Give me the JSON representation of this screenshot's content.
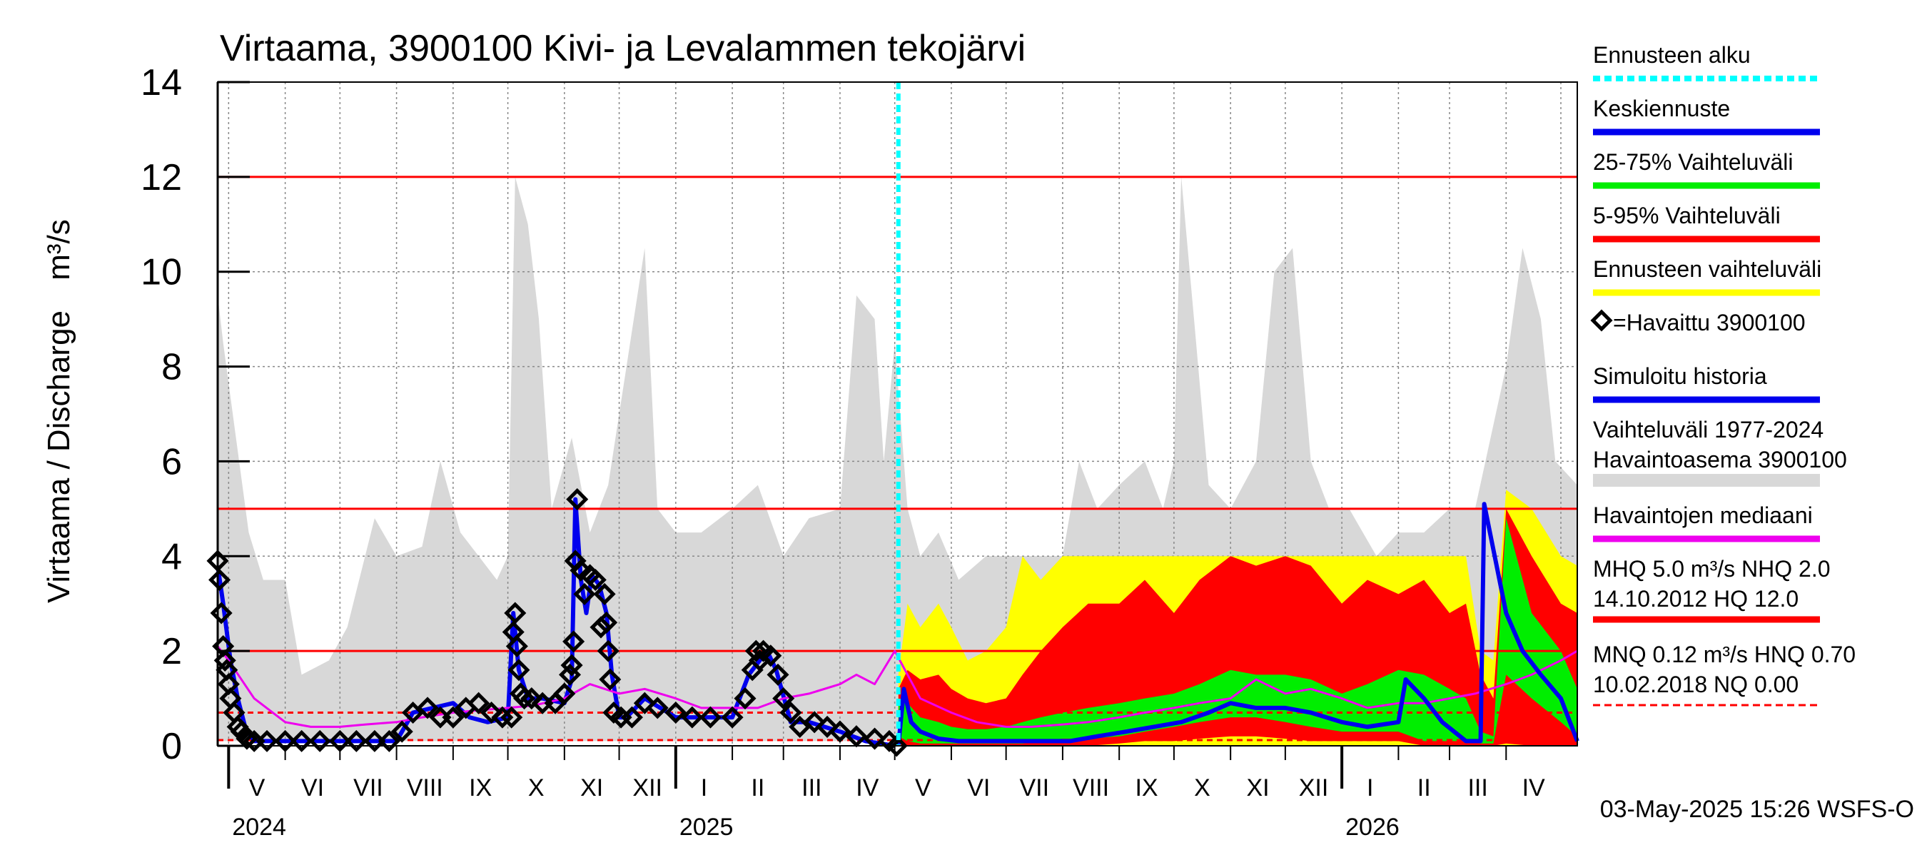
{
  "chart_data": {
    "type": "line",
    "title": "Virtaama, 3900100 Kivi- ja Levalammen tekojärvi",
    "ylabel": "Virtaama / Discharge",
    "yunit": "m³/s",
    "ylim": [
      0,
      14
    ],
    "yticks": [
      0,
      2,
      4,
      6,
      8,
      10,
      12,
      14
    ],
    "x_start": "2024-04-25",
    "x_end": "2026-05-10",
    "months": [
      {
        "label": "V",
        "date": "2024-05-01"
      },
      {
        "label": "VI",
        "date": "2024-06-01"
      },
      {
        "label": "VII",
        "date": "2024-07-01"
      },
      {
        "label": "VIII",
        "date": "2024-08-01"
      },
      {
        "label": "IX",
        "date": "2024-09-01"
      },
      {
        "label": "X",
        "date": "2024-10-01"
      },
      {
        "label": "XI",
        "date": "2024-11-01"
      },
      {
        "label": "XII",
        "date": "2024-12-01"
      },
      {
        "label": "I",
        "date": "2025-01-01"
      },
      {
        "label": "II",
        "date": "2025-02-01"
      },
      {
        "label": "III",
        "date": "2025-03-01"
      },
      {
        "label": "IV",
        "date": "2025-04-01"
      },
      {
        "label": "V",
        "date": "2025-05-01"
      },
      {
        "label": "VI",
        "date": "2025-06-01"
      },
      {
        "label": "VII",
        "date": "2025-07-01"
      },
      {
        "label": "VIII",
        "date": "2025-08-01"
      },
      {
        "label": "IX",
        "date": "2025-09-01"
      },
      {
        "label": "X",
        "date": "2025-10-01"
      },
      {
        "label": "XI",
        "date": "2025-11-01"
      },
      {
        "label": "XII",
        "date": "2025-12-01"
      },
      {
        "label": "I",
        "date": "2026-01-01"
      },
      {
        "label": "II",
        "date": "2026-02-01"
      },
      {
        "label": "III",
        "date": "2026-03-01"
      },
      {
        "label": "IV",
        "date": "2026-04-01"
      },
      {
        "label": "",
        "date": "2026-05-01"
      }
    ],
    "years": [
      {
        "label": "2024",
        "date": "2024-05-01"
      },
      {
        "label": "2025",
        "date": "2025-01-01"
      },
      {
        "label": "2026",
        "date": "2026-01-01"
      }
    ],
    "forecast_start": "2025-05-03",
    "reference_lines": [
      {
        "name": "HQ",
        "y": 12.0,
        "color": "#ff0000",
        "style": "solid"
      },
      {
        "name": "MHQ",
        "y": 5.0,
        "color": "#ff0000",
        "style": "solid"
      },
      {
        "name": "NHQ",
        "y": 2.0,
        "color": "#ff0000",
        "style": "solid"
      },
      {
        "name": "HNQ",
        "y": 0.7,
        "color": "#ff0000",
        "style": "dashed"
      },
      {
        "name": "MNQ",
        "y": 0.12,
        "color": "#ff0000",
        "style": "dashed"
      }
    ],
    "history_range": {
      "color": "#d8d8d8",
      "x": [
        "2024-04-25",
        "2024-04-28",
        "2024-05-05",
        "2024-05-12",
        "2024-05-20",
        "2024-06-01",
        "2024-06-10",
        "2024-06-25",
        "2024-07-05",
        "2024-07-20",
        "2024-08-01",
        "2024-08-15",
        "2024-08-25",
        "2024-09-05",
        "2024-09-15",
        "2024-09-25",
        "2024-10-01",
        "2024-10-05",
        "2024-10-12",
        "2024-10-18",
        "2024-10-25",
        "2024-11-05",
        "2024-11-15",
        "2024-11-25",
        "2024-12-05",
        "2024-12-15",
        "2024-12-22",
        "2025-01-01",
        "2025-01-15",
        "2025-02-01",
        "2025-02-15",
        "2025-03-01",
        "2025-03-15",
        "2025-04-01",
        "2025-04-10",
        "2025-04-20",
        "2025-04-25",
        "2025-05-01",
        "2025-05-08",
        "2025-05-15",
        "2025-05-25",
        "2025-06-05",
        "2025-06-20",
        "2025-07-01",
        "2025-07-15",
        "2025-08-01",
        "2025-08-10",
        "2025-08-20",
        "2025-09-01",
        "2025-09-15",
        "2025-09-25",
        "2025-10-01",
        "2025-10-05",
        "2025-10-12",
        "2025-10-20",
        "2025-11-01",
        "2025-11-15",
        "2025-11-25",
        "2025-12-05",
        "2025-12-15",
        "2025-12-25",
        "2026-01-05",
        "2026-01-20",
        "2026-02-01",
        "2026-02-15",
        "2026-03-01",
        "2026-03-15",
        "2026-04-01",
        "2026-04-10",
        "2026-04-20",
        "2026-04-28",
        "2026-05-10"
      ],
      "y": [
        9.5,
        8.5,
        6.5,
        4.5,
        3.5,
        3.5,
        1.5,
        1.8,
        2.5,
        4.8,
        4.0,
        4.2,
        6.0,
        4.5,
        4.0,
        3.5,
        4.0,
        12.0,
        11.0,
        9.0,
        5.0,
        6.5,
        4.5,
        5.5,
        8.0,
        10.5,
        5.0,
        4.5,
        4.5,
        5.0,
        5.5,
        4.0,
        4.8,
        5.0,
        9.5,
        9.0,
        6.0,
        8.5,
        5.0,
        4.0,
        4.5,
        3.5,
        4.0,
        4.0,
        4.0,
        4.0,
        6.0,
        5.0,
        5.5,
        6.0,
        5.0,
        6.0,
        12.0,
        9.0,
        5.5,
        5.0,
        6.0,
        10.0,
        10.5,
        6.0,
        5.0,
        5.0,
        4.0,
        4.5,
        4.5,
        5.0,
        5.0,
        8.0,
        10.5,
        9.0,
        6.0,
        5.5
      ]
    },
    "history_range_low": 0.1,
    "forecast_yellow": {
      "color": "#ffff00",
      "x": [
        "2025-05-03",
        "2025-05-08",
        "2025-05-15",
        "2025-05-25",
        "2025-06-01",
        "2025-06-10",
        "2025-06-20",
        "2025-07-01",
        "2025-07-10",
        "2025-07-20",
        "2025-08-01",
        "2025-08-15",
        "2025-09-01",
        "2025-09-15",
        "2025-10-01",
        "2025-10-15",
        "2025-11-01",
        "2025-11-15",
        "2025-12-01",
        "2025-12-15",
        "2026-01-01",
        "2026-01-15",
        "2026-02-01",
        "2026-02-15",
        "2026-03-01",
        "2026-03-10",
        "2026-03-18",
        "2026-03-25",
        "2026-04-01",
        "2026-04-15",
        "2026-05-01",
        "2026-05-10"
      ],
      "y": [
        1.5,
        3.0,
        2.5,
        3.0,
        2.5,
        1.8,
        2.0,
        2.5,
        4.0,
        3.5,
        4.0,
        4.0,
        4.0,
        4.0,
        4.0,
        4.0,
        4.0,
        4.0,
        4.0,
        4.0,
        4.0,
        4.0,
        4.0,
        4.0,
        4.0,
        4.0,
        2.0,
        1.8,
        5.4,
        5.0,
        4.0,
        3.8
      ],
      "low": 0.0
    },
    "forecast_p5_95": {
      "color": "#ff0000",
      "x": [
        "2025-05-03",
        "2025-05-08",
        "2025-05-15",
        "2025-05-25",
        "2025-06-01",
        "2025-06-10",
        "2025-06-20",
        "2025-07-01",
        "2025-07-10",
        "2025-07-20",
        "2025-08-01",
        "2025-08-15",
        "2025-09-01",
        "2025-09-15",
        "2025-10-01",
        "2025-10-15",
        "2025-11-01",
        "2025-11-15",
        "2025-12-01",
        "2025-12-15",
        "2026-01-01",
        "2026-01-15",
        "2026-02-01",
        "2026-02-15",
        "2026-03-01",
        "2026-03-10",
        "2026-03-18",
        "2026-03-25",
        "2026-04-01",
        "2026-04-15",
        "2026-05-01",
        "2026-05-10"
      ],
      "y": [
        1.2,
        1.6,
        1.4,
        1.5,
        1.2,
        1.0,
        0.9,
        1.0,
        1.5,
        2.0,
        2.5,
        3.0,
        3.0,
        3.5,
        2.8,
        3.5,
        4.0,
        3.8,
        4.0,
        3.8,
        3.0,
        3.5,
        3.2,
        3.5,
        2.8,
        3.0,
        1.5,
        1.0,
        5.0,
        4.0,
        3.0,
        2.8
      ],
      "low": [
        0.0,
        0.0,
        0.0,
        0.0,
        0.0,
        0.0,
        0.0,
        0.0,
        0.0,
        0.0,
        0.0,
        0.0,
        0.05,
        0.1,
        0.1,
        0.15,
        0.2,
        0.2,
        0.15,
        0.1,
        0.1,
        0.1,
        0.1,
        0.0,
        0.0,
        0.0,
        0.0,
        0.0,
        0.05,
        0.0,
        0.0,
        0.0
      ]
    },
    "forecast_p25_75": {
      "color": "#00ee00",
      "x": [
        "2025-05-03",
        "2025-05-08",
        "2025-05-15",
        "2025-05-25",
        "2025-06-01",
        "2025-06-10",
        "2025-06-20",
        "2025-07-01",
        "2025-07-10",
        "2025-07-20",
        "2025-08-01",
        "2025-08-15",
        "2025-09-01",
        "2025-09-15",
        "2025-10-01",
        "2025-10-15",
        "2025-11-01",
        "2025-11-15",
        "2025-12-01",
        "2025-12-15",
        "2026-01-01",
        "2026-01-15",
        "2026-02-01",
        "2026-02-15",
        "2026-03-01",
        "2026-03-10",
        "2026-03-18",
        "2026-03-25",
        "2026-04-01",
        "2026-04-15",
        "2026-05-01",
        "2026-05-10"
      ],
      "y": [
        1.0,
        0.9,
        0.6,
        0.5,
        0.4,
        0.35,
        0.35,
        0.4,
        0.5,
        0.6,
        0.7,
        0.8,
        0.9,
        1.0,
        1.1,
        1.3,
        1.6,
        1.5,
        1.5,
        1.4,
        1.1,
        1.3,
        1.6,
        1.5,
        1.2,
        1.0,
        0.3,
        0.2,
        4.8,
        2.8,
        2.0,
        1.2
      ],
      "low": [
        0.2,
        0.1,
        0.05,
        0.05,
        0.05,
        0.05,
        0.05,
        0.05,
        0.05,
        0.1,
        0.15,
        0.15,
        0.2,
        0.3,
        0.4,
        0.5,
        0.6,
        0.6,
        0.5,
        0.4,
        0.3,
        0.3,
        0.3,
        0.1,
        0.1,
        0.1,
        0.05,
        0.05,
        1.5,
        1.0,
        0.5,
        0.2
      ]
    },
    "series": [
      {
        "name": "Keskiennuste",
        "color": "#0000ee",
        "width": 6,
        "x": [
          "2025-05-03",
          "2025-05-06",
          "2025-05-10",
          "2025-05-15",
          "2025-05-25",
          "2025-06-05",
          "2025-06-20",
          "2025-07-05",
          "2025-07-20",
          "2025-08-05",
          "2025-08-20",
          "2025-09-05",
          "2025-09-20",
          "2025-10-05",
          "2025-10-20",
          "2025-11-01",
          "2025-11-15",
          "2025-12-01",
          "2025-12-15",
          "2026-01-01",
          "2026-01-15",
          "2026-02-01",
          "2026-02-05",
          "2026-02-15",
          "2026-02-25",
          "2026-03-10",
          "2026-03-18",
          "2026-03-20",
          "2026-04-01",
          "2026-04-10",
          "2026-04-20",
          "2026-05-01",
          "2026-05-10"
        ],
        "y": [
          0.0,
          1.2,
          0.5,
          0.3,
          0.15,
          0.1,
          0.1,
          0.1,
          0.1,
          0.1,
          0.2,
          0.3,
          0.4,
          0.5,
          0.7,
          0.9,
          0.8,
          0.8,
          0.7,
          0.5,
          0.4,
          0.5,
          1.4,
          1.0,
          0.5,
          0.1,
          0.1,
          5.1,
          2.8,
          2.0,
          1.5,
          1.0,
          0.1
        ]
      },
      {
        "name": "Havaintojen mediaani",
        "color": "#ee00ee",
        "width": 3,
        "x": [
          "2024-04-25",
          "2024-05-01",
          "2024-05-15",
          "2024-06-01",
          "2024-06-15",
          "2024-07-01",
          "2024-07-15",
          "2024-08-01",
          "2024-08-15",
          "2024-09-01",
          "2024-09-15",
          "2024-10-01",
          "2024-10-15",
          "2024-11-01",
          "2024-11-15",
          "2024-12-01",
          "2024-12-15",
          "2025-01-01",
          "2025-01-15",
          "2025-02-01",
          "2025-02-15",
          "2025-03-01",
          "2025-03-15",
          "2025-04-01",
          "2025-04-10",
          "2025-04-20",
          "2025-05-01",
          "2025-05-15",
          "2025-06-01",
          "2025-06-15",
          "2025-07-01",
          "2025-07-15",
          "2025-08-01",
          "2025-08-15",
          "2025-09-01",
          "2025-09-15",
          "2025-10-01",
          "2025-10-15",
          "2025-11-01",
          "2025-11-15",
          "2025-12-01",
          "2025-12-15",
          "2026-01-01",
          "2026-01-15",
          "2026-02-01",
          "2026-02-15",
          "2026-03-01",
          "2026-03-15",
          "2026-04-01",
          "2026-04-15",
          "2026-05-01",
          "2026-05-10"
        ],
        "y": [
          2.1,
          1.8,
          1.0,
          0.5,
          0.4,
          0.4,
          0.45,
          0.5,
          0.6,
          0.7,
          0.75,
          0.8,
          0.85,
          1.0,
          1.3,
          1.1,
          1.2,
          1.0,
          0.8,
          0.8,
          0.8,
          1.0,
          1.1,
          1.3,
          1.5,
          1.3,
          2.0,
          1.0,
          0.7,
          0.5,
          0.4,
          0.4,
          0.45,
          0.5,
          0.6,
          0.7,
          0.8,
          0.9,
          1.0,
          1.4,
          1.1,
          1.2,
          1.0,
          0.8,
          0.9,
          0.9,
          1.0,
          1.1,
          1.3,
          1.5,
          1.8,
          2.0
        ]
      }
    ],
    "simulated_history": {
      "name": "Simuloitu historia",
      "color": "#0000ee",
      "width": 6,
      "x": [
        "2024-04-25",
        "2024-04-28",
        "2024-05-02",
        "2024-05-06",
        "2024-05-10",
        "2024-05-15",
        "2024-08-01",
        "2024-08-10",
        "2024-09-01",
        "2024-09-10",
        "2024-09-20",
        "2024-10-01",
        "2024-10-04",
        "2024-10-07",
        "2024-10-12",
        "2024-10-20",
        "2024-11-01",
        "2024-11-05",
        "2024-11-07",
        "2024-11-10",
        "2024-11-13",
        "2024-11-16",
        "2024-11-20",
        "2024-11-24",
        "2024-11-27",
        "2024-12-01",
        "2024-12-05",
        "2024-12-15",
        "2025-01-01",
        "2025-02-01",
        "2025-02-10",
        "2025-02-20",
        "2025-02-25",
        "2025-03-05",
        "2025-03-15",
        "2025-04-01",
        "2025-04-15",
        "2025-05-01"
      ],
      "y": [
        3.8,
        3.0,
        1.8,
        1.0,
        0.4,
        0.1,
        0.1,
        0.7,
        0.9,
        0.6,
        0.5,
        0.6,
        2.8,
        1.6,
        1.0,
        1.0,
        0.9,
        1.4,
        5.2,
        3.5,
        2.8,
        3.6,
        3.4,
        2.8,
        1.5,
        0.6,
        0.6,
        1.0,
        0.6,
        0.6,
        1.5,
        2.0,
        1.6,
        0.5,
        0.5,
        0.3,
        0.1,
        0.0
      ]
    },
    "observed": {
      "name": "=Havaittu 3900100",
      "x": [
        "2024-04-25",
        "2024-04-26",
        "2024-04-27",
        "2024-04-28",
        "2024-04-29",
        "2024-04-30",
        "2024-05-01",
        "2024-05-02",
        "2024-05-04",
        "2024-05-06",
        "2024-05-08",
        "2024-05-11",
        "2024-05-15",
        "2024-05-22",
        "2024-06-01",
        "2024-06-10",
        "2024-06-20",
        "2024-07-01",
        "2024-07-10",
        "2024-07-20",
        "2024-07-28",
        "2024-08-04",
        "2024-08-10",
        "2024-08-18",
        "2024-08-25",
        "2024-09-01",
        "2024-09-08",
        "2024-09-15",
        "2024-09-22",
        "2024-09-28",
        "2024-10-03",
        "2024-10-04",
        "2024-10-05",
        "2024-10-06",
        "2024-10-07",
        "2024-10-08",
        "2024-10-10",
        "2024-10-14",
        "2024-10-20",
        "2024-10-27",
        "2024-11-01",
        "2024-11-04",
        "2024-11-05",
        "2024-11-06",
        "2024-11-07",
        "2024-11-08",
        "2024-11-10",
        "2024-11-12",
        "2024-11-15",
        "2024-11-18",
        "2024-11-21",
        "2024-11-23",
        "2024-11-24",
        "2024-11-25",
        "2024-11-26",
        "2024-11-28",
        "2024-12-02",
        "2024-12-08",
        "2024-12-15",
        "2024-12-22",
        "2025-01-01",
        "2025-01-10",
        "2025-01-20",
        "2025-02-01",
        "2025-02-08",
        "2025-02-12",
        "2025-02-14",
        "2025-02-16",
        "2025-02-18",
        "2025-02-22",
        "2025-02-26",
        "2025-03-01",
        "2025-03-05",
        "2025-03-10",
        "2025-03-18",
        "2025-03-25",
        "2025-04-01",
        "2025-04-10",
        "2025-04-20",
        "2025-04-28",
        "2025-05-02"
      ],
      "y": [
        3.9,
        3.5,
        2.8,
        2.1,
        1.8,
        1.6,
        1.3,
        1.0,
        0.7,
        0.4,
        0.3,
        0.15,
        0.1,
        0.1,
        0.1,
        0.1,
        0.1,
        0.1,
        0.1,
        0.1,
        0.1,
        0.3,
        0.7,
        0.8,
        0.6,
        0.6,
        0.8,
        0.9,
        0.7,
        0.6,
        0.6,
        2.4,
        2.8,
        2.1,
        1.6,
        1.1,
        1.0,
        1.0,
        0.9,
        0.9,
        1.1,
        1.5,
        1.7,
        2.2,
        3.9,
        5.2,
        3.7,
        3.2,
        3.6,
        3.5,
        2.5,
        3.2,
        2.6,
        2.0,
        1.4,
        0.7,
        0.6,
        0.6,
        0.9,
        0.8,
        0.7,
        0.6,
        0.6,
        0.6,
        1.0,
        1.6,
        2.0,
        1.8,
        2.0,
        1.9,
        1.5,
        1.0,
        0.7,
        0.4,
        0.5,
        0.4,
        0.3,
        0.2,
        0.15,
        0.1,
        0.0
      ]
    },
    "legend": [
      {
        "label": "Ennusteen alku",
        "color": "#00ffff",
        "style": "dashed"
      },
      {
        "label": "Keskiennuste",
        "color": "#0000ee",
        "style": "solid"
      },
      {
        "label": "25-75% Vaihteluväli",
        "color": "#00ee00",
        "style": "solid"
      },
      {
        "label": "5-95% Vaihteluväli",
        "color": "#ff0000",
        "style": "solid"
      },
      {
        "label": "Ennusteen vaihteluväli",
        "color": "#ffff00",
        "style": "solid"
      },
      {
        "label": "=Havaittu 3900100",
        "color": "#000000",
        "style": "marker"
      },
      {
        "label": "Simuloitu historia",
        "color": "#0000ee",
        "style": "solid"
      },
      {
        "label": "Vaihteluväli 1977-2024",
        "label2": " Havaintoasema 3900100",
        "color": "#d8d8d8",
        "style": "thick"
      },
      {
        "label": "Havaintojen mediaani",
        "color": "#ee00ee",
        "style": "solid"
      },
      {
        "label": "MHQ  5.0 m³/s NHQ  2.0",
        "label2": "14.10.2012 HQ 12.0",
        "color": "#ff0000",
        "style": "solid"
      },
      {
        "label": "MNQ 0.12 m³/s HNQ 0.70",
        "label2": "10.02.2018 NQ 0.00",
        "color": "#ff0000",
        "style": "dashed"
      }
    ],
    "footer": "03-May-2025 15:26 WSFS-O",
    "grid": true
  }
}
